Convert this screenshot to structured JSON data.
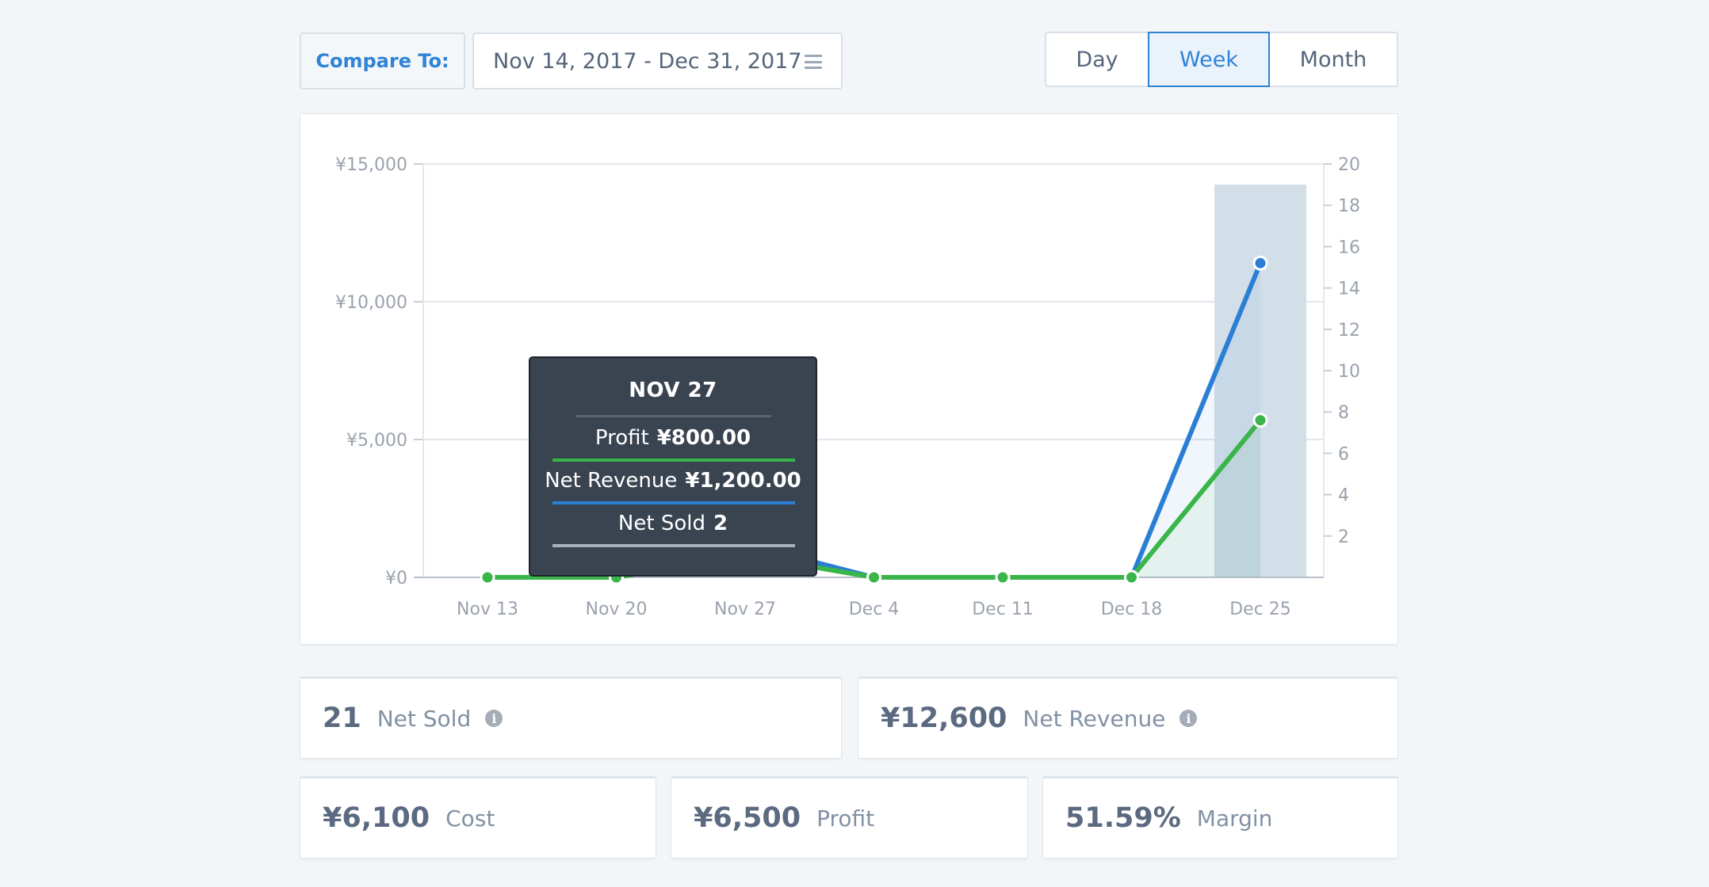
{
  "compare_to": "Compare To:",
  "date_range": "Nov 14, 2017 - Dec 31, 2017",
  "range_options": [
    "Day",
    "Week",
    "Month"
  ],
  "range_selected": "Week",
  "tooltip": {
    "title": "NOV 27",
    "profit_label": "Profit",
    "profit_value": "¥800.00",
    "revenue_label": "Net Revenue",
    "revenue_value": "¥1,200.00",
    "sold_label": "Net Sold",
    "sold_value": "2"
  },
  "stats": {
    "net_sold": {
      "value": "21",
      "label": "Net Sold"
    },
    "net_revenue": {
      "value": "¥12,600",
      "label": "Net Revenue"
    },
    "cost": {
      "value": "¥6,100",
      "label": "Cost"
    },
    "profit": {
      "value": "¥6,500",
      "label": "Profit"
    },
    "margin": {
      "value": "51.59%",
      "label": "Margin"
    }
  },
  "colors": {
    "revenue": "#2a7fd4",
    "profit": "#3ab54a",
    "net_sold_bar": "#d3dfe8",
    "accent": "#2f83d6"
  },
  "chart_data": {
    "type": "line",
    "x": [
      "Nov 13",
      "Nov 20",
      "Nov 27",
      "Dec 4",
      "Dec 11",
      "Dec 18",
      "Dec 25"
    ],
    "y_left_ticks": [
      "¥0",
      "¥5,000",
      "¥10,000",
      "¥15,000"
    ],
    "y_left_range": [
      0,
      15000
    ],
    "y_right_ticks": [
      "2",
      "4",
      "6",
      "8",
      "10",
      "12",
      "14",
      "16",
      "18",
      "20"
    ],
    "y_right_range": [
      0,
      20
    ],
    "series": [
      {
        "name": "Net Revenue",
        "axis": "left",
        "type": "line",
        "values": [
          0,
          0,
          1200,
          0,
          0,
          0,
          11400
        ]
      },
      {
        "name": "Profit",
        "axis": "left",
        "type": "line",
        "values": [
          0,
          0,
          800,
          0,
          0,
          0,
          5700
        ]
      },
      {
        "name": "Net Sold",
        "axis": "right",
        "type": "bar",
        "values": [
          0,
          0,
          2,
          0,
          0,
          0,
          19
        ]
      }
    ],
    "grid": true
  }
}
